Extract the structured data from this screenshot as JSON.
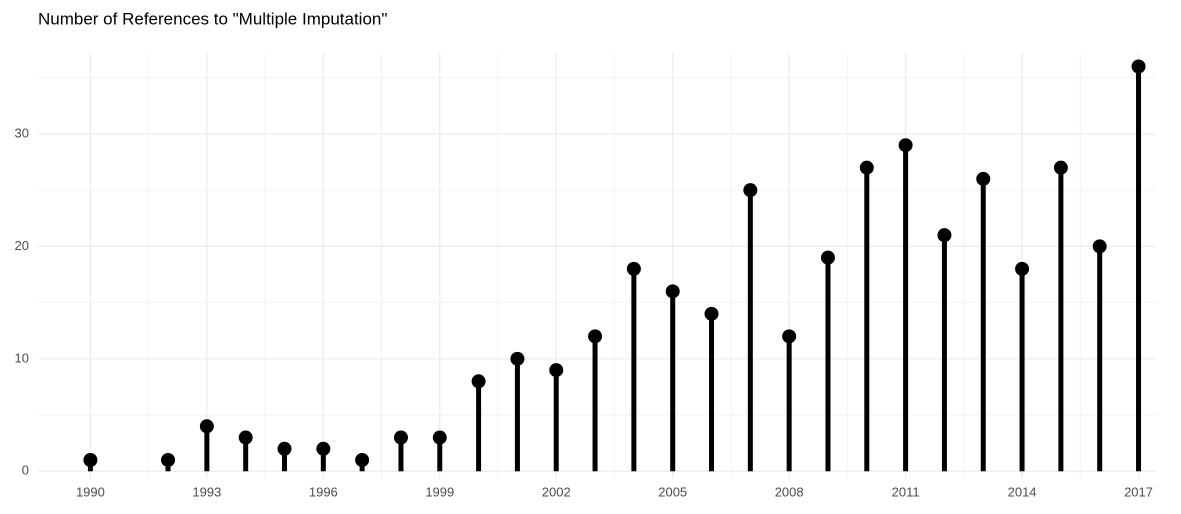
{
  "chart_data": {
    "type": "lollipop",
    "title": "Number of References to \"Multiple Imputation\"",
    "x": [
      1990,
      1992,
      1993,
      1994,
      1995,
      1996,
      1997,
      1998,
      1999,
      2000,
      2001,
      2002,
      2003,
      2004,
      2005,
      2006,
      2007,
      2008,
      2009,
      2010,
      2011,
      2012,
      2013,
      2014,
      2015,
      2016,
      2017
    ],
    "values": [
      1,
      1,
      4,
      3,
      2,
      2,
      1,
      3,
      3,
      8,
      10,
      9,
      12,
      18,
      16,
      14,
      25,
      12,
      19,
      27,
      29,
      21,
      26,
      18,
      27,
      20,
      36
    ],
    "color": "#000000",
    "xlim": [
      1988.65,
      2017.45
    ],
    "xticks": [
      1990,
      1993,
      1996,
      1999,
      2002,
      2005,
      2008,
      2011,
      2014,
      2017
    ],
    "xticks_minor": [
      1991.5,
      1994.5,
      1997.5,
      2000.5,
      2003.5,
      2006.5,
      2009.5,
      2012.5,
      2015.5
    ],
    "ylim": [
      -0.6,
      37.2
    ],
    "yticks": [
      0,
      10,
      20,
      30
    ],
    "yticks_minor": [
      5,
      15,
      25,
      35
    ],
    "grid": true
  }
}
